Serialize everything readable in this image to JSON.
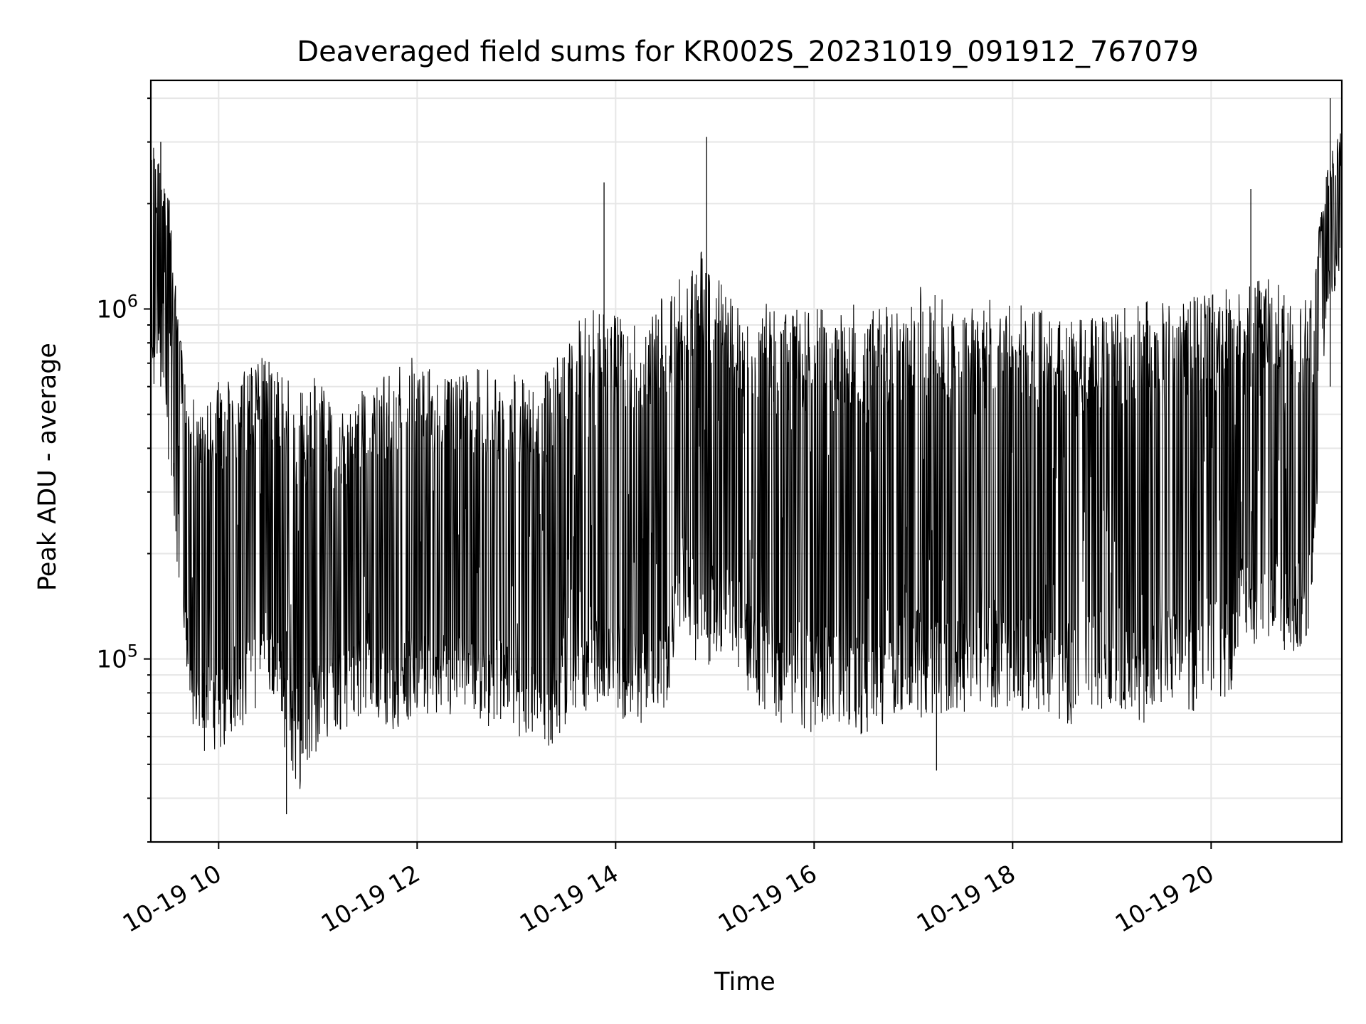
{
  "chart_data": {
    "type": "line",
    "title": "Deaveraged field sums for KR002S_20231019_091912_767079",
    "xlabel": "Time",
    "ylabel": "Peak ADU - average",
    "xlim": [
      "2023-10-19T09:19",
      "2023-10-19T21:19"
    ],
    "ylim": [
      30000,
      4500000
    ],
    "yscale": "log",
    "grid": true,
    "line_color": "#000000",
    "x_ticks": [
      {
        "label": "10-19 10",
        "value": "2023-10-19T10:00"
      },
      {
        "label": "10-19 12",
        "value": "2023-10-19T12:00"
      },
      {
        "label": "10-19 14",
        "value": "2023-10-19T14:00"
      },
      {
        "label": "10-19 16",
        "value": "2023-10-19T16:00"
      },
      {
        "label": "10-19 18",
        "value": "2023-10-19T18:00"
      },
      {
        "label": "10-19 20",
        "value": "2023-10-19T20:00"
      }
    ],
    "y_ticks": [
      {
        "base": "10",
        "exp": "5",
        "value": 100000
      },
      {
        "base": "10",
        "exp": "6",
        "value": 1000000
      }
    ],
    "series": [
      {
        "x": [
          "2023-10-19T09:20",
          "2023-10-19T09:25",
          "2023-10-19T09:30",
          "2023-10-19T09:35",
          "2023-10-19T09:40",
          "2023-10-19T09:45",
          "2023-10-19T09:50",
          "2023-10-19T10:00",
          "2023-10-19T10:10",
          "2023-10-19T10:20",
          "2023-10-19T10:30",
          "2023-10-19T10:40",
          "2023-10-19T10:50",
          "2023-10-19T11:00",
          "2023-10-19T11:10",
          "2023-10-19T11:20",
          "2023-10-19T11:30",
          "2023-10-19T11:40",
          "2023-10-19T11:50",
          "2023-10-19T12:00",
          "2023-10-19T12:10",
          "2023-10-19T12:20",
          "2023-10-19T12:30",
          "2023-10-19T12:40",
          "2023-10-19T12:50",
          "2023-10-19T13:00",
          "2023-10-19T13:10",
          "2023-10-19T13:20",
          "2023-10-19T13:30",
          "2023-10-19T13:40",
          "2023-10-19T13:50",
          "2023-10-19T14:00",
          "2023-10-19T14:10",
          "2023-10-19T14:20",
          "2023-10-19T14:30",
          "2023-10-19T14:40",
          "2023-10-19T14:50",
          "2023-10-19T15:00",
          "2023-10-19T15:10",
          "2023-10-19T15:20",
          "2023-10-19T15:30",
          "2023-10-19T15:40",
          "2023-10-19T15:50",
          "2023-10-19T16:00",
          "2023-10-19T16:10",
          "2023-10-19T16:20",
          "2023-10-19T16:30",
          "2023-10-19T16:40",
          "2023-10-19T16:50",
          "2023-10-19T17:00",
          "2023-10-19T17:10",
          "2023-10-19T17:20",
          "2023-10-19T17:30",
          "2023-10-19T17:40",
          "2023-10-19T17:50",
          "2023-10-19T18:00",
          "2023-10-19T18:10",
          "2023-10-19T18:20",
          "2023-10-19T18:30",
          "2023-10-19T18:40",
          "2023-10-19T18:50",
          "2023-10-19T19:00",
          "2023-10-19T19:10",
          "2023-10-19T19:20",
          "2023-10-19T19:30",
          "2023-10-19T19:40",
          "2023-10-19T19:50",
          "2023-10-19T20:00",
          "2023-10-19T20:10",
          "2023-10-19T20:20",
          "2023-10-19T20:30",
          "2023-10-19T20:40",
          "2023-10-19T20:50",
          "2023-10-19T21:00",
          "2023-10-19T21:10",
          "2023-10-19T21:18"
        ],
        "low": [
          500000,
          700000,
          350000,
          180000,
          90000,
          60000,
          55000,
          50000,
          60000,
          70000,
          80000,
          55000,
          40000,
          55000,
          60000,
          65000,
          70000,
          65000,
          60000,
          70000,
          65000,
          65000,
          70000,
          60000,
          65000,
          60000,
          55000,
          55000,
          65000,
          70000,
          75000,
          70000,
          60000,
          65000,
          70000,
          120000,
          90000,
          100000,
          100000,
          80000,
          70000,
          65000,
          65000,
          60000,
          65000,
          65000,
          60000,
          60000,
          70000,
          70000,
          65000,
          70000,
          70000,
          75000,
          70000,
          70000,
          70000,
          70000,
          65000,
          65000,
          70000,
          75000,
          70000,
          65000,
          70000,
          70000,
          70000,
          80000,
          70000,
          120000,
          100000,
          100000,
          100000,
          120000,
          1000000,
          1200000
        ],
        "high": [
          3000000,
          2500000,
          2200000,
          1200000,
          600000,
          550000,
          500000,
          650000,
          650000,
          700000,
          750000,
          650000,
          600000,
          650000,
          500000,
          550000,
          600000,
          650000,
          700000,
          750000,
          700000,
          700000,
          700000,
          700000,
          650000,
          650000,
          600000,
          700000,
          800000,
          1000000,
          1100000,
          1000000,
          900000,
          1000000,
          1100000,
          1300000,
          1500000,
          1300000,
          1100000,
          1000000,
          1100000,
          1000000,
          1000000,
          1000000,
          1000000,
          1050000,
          1000000,
          1000000,
          1100000,
          1200000,
          1150000,
          1100000,
          1000000,
          1100000,
          1150000,
          1100000,
          1000000,
          1000000,
          1000000,
          950000,
          1000000,
          1000000,
          1050000,
          1050000,
          1100000,
          1100000,
          1100000,
          1100000,
          1150000,
          1200000,
          1250000,
          1200000,
          1100000,
          1100000,
          2600000,
          3200000
        ]
      }
    ],
    "spikes": [
      {
        "x": "2023-10-19T09:25",
        "y": 3000000
      },
      {
        "x": "2023-10-19T10:41",
        "y": 36000
      },
      {
        "x": "2023-10-19T13:53",
        "y": 2300000
      },
      {
        "x": "2023-10-19T14:55",
        "y": 3100000
      },
      {
        "x": "2023-10-19T17:14",
        "y": 48000
      },
      {
        "x": "2023-10-19T20:24",
        "y": 2200000
      },
      {
        "x": "2023-10-19T21:12",
        "y": 4000000
      }
    ]
  }
}
